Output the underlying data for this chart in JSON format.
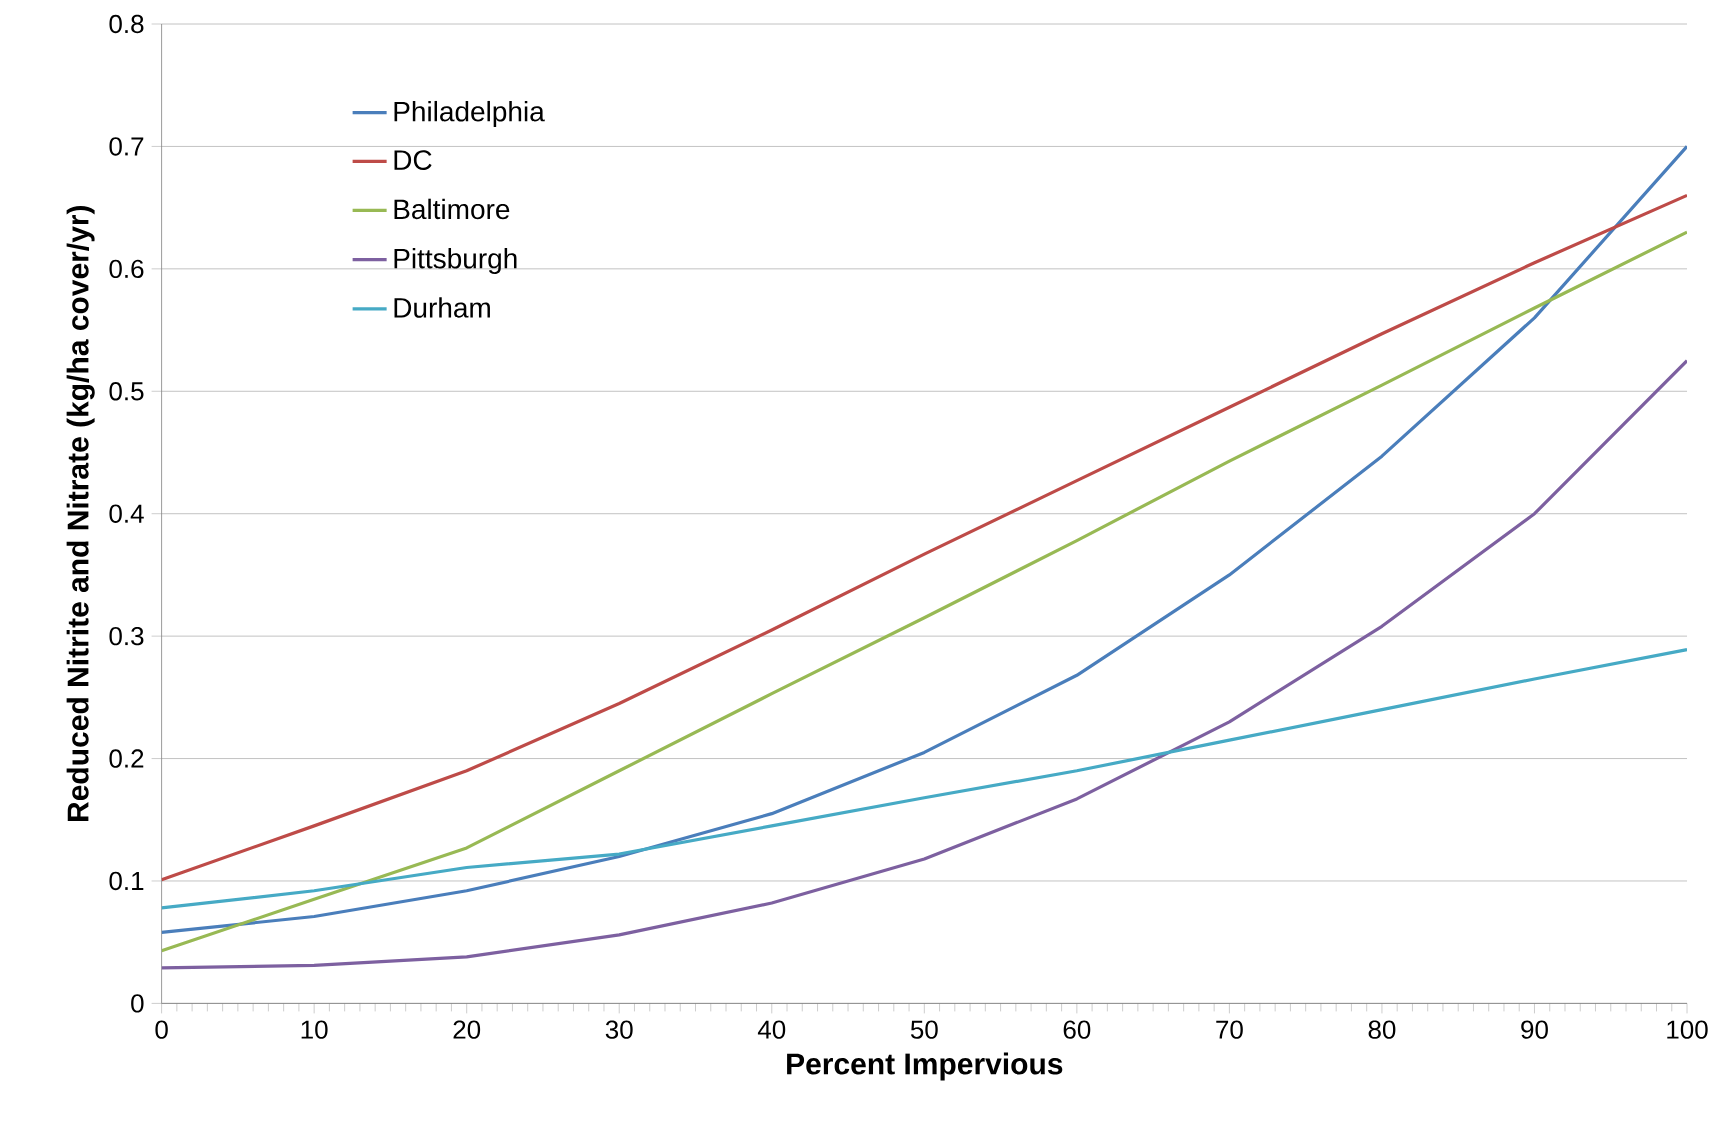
{
  "chart_data": {
    "type": "line",
    "xlabel": "Percent Impervious",
    "ylabel": "Reduced Nitrite and Nitrate (kg/ha cover/yr)",
    "x": [
      0,
      10,
      20,
      30,
      40,
      50,
      60,
      70,
      80,
      90,
      100
    ],
    "series": [
      {
        "name": "Philadelphia",
        "color": "#4a7ebb",
        "values": [
          0.058,
          0.071,
          0.092,
          0.12,
          0.155,
          0.205,
          0.268,
          0.35,
          0.447,
          0.56,
          0.7
        ]
      },
      {
        "name": "DC",
        "color": "#be4b48",
        "values": [
          0.101,
          0.145,
          0.19,
          0.245,
          0.305,
          0.367,
          0.427,
          0.487,
          0.547,
          0.605,
          0.66
        ]
      },
      {
        "name": "Baltimore",
        "color": "#98b954",
        "values": [
          0.043,
          0.085,
          0.127,
          0.19,
          0.253,
          0.315,
          0.378,
          0.443,
          0.505,
          0.568,
          0.63
        ]
      },
      {
        "name": "Pittsburgh",
        "color": "#7d60a0",
        "values": [
          0.029,
          0.031,
          0.038,
          0.056,
          0.082,
          0.118,
          0.167,
          0.23,
          0.308,
          0.4,
          0.525
        ]
      },
      {
        "name": "Durham",
        "color": "#46aac5",
        "values": [
          0.078,
          0.092,
          0.111,
          0.122,
          0.145,
          0.168,
          0.19,
          0.215,
          0.24,
          0.265,
          0.289
        ]
      }
    ],
    "xlim": [
      0,
      100
    ],
    "xticks": [
      0,
      10,
      20,
      30,
      40,
      50,
      60,
      70,
      80,
      90,
      100
    ],
    "ylim": [
      0,
      0.8
    ],
    "yticks": [
      0,
      0.1,
      0.2,
      0.3,
      0.4,
      0.5,
      0.6,
      0.7,
      0.8
    ],
    "grid": "y",
    "legend": "top left",
    "marker": "none",
    "line_style": "solid"
  }
}
